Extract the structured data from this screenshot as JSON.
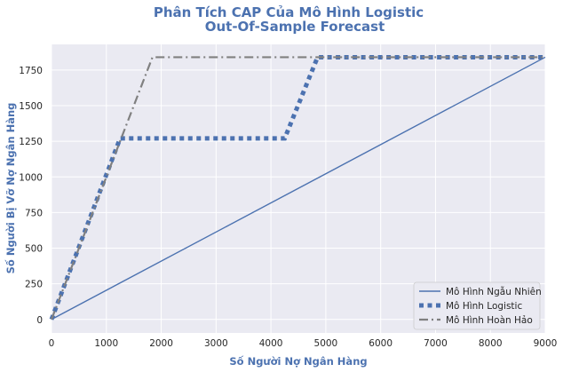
{
  "colors": {
    "title": "#4c72b0",
    "plot_bg": "#eaeaf2",
    "grid": "#ffffff",
    "random": "#4c72b0",
    "model": "#4c72b0",
    "perfect": "#808080"
  },
  "chart_data": {
    "type": "line",
    "title": "Phân Tích CAP Của Mô Hình Logistic",
    "subtitle": "Out-Of-Sample Forecast",
    "xlabel": "Số Người Nợ Ngân Hàng",
    "ylabel": "Số Người Bị Vỡ Nợ Ngân Hàng",
    "xlim": [
      0,
      9000
    ],
    "ylim": [
      -95,
      1930
    ],
    "xticks": [
      0,
      1000,
      2000,
      3000,
      4000,
      5000,
      6000,
      7000,
      8000,
      9000
    ],
    "yticks": [
      0,
      250,
      500,
      750,
      1000,
      1250,
      1500,
      1750
    ],
    "grid": true,
    "legend_position": "bottom-right",
    "series": [
      {
        "name": "Mô Hình Ngẫu Nhiên",
        "style": "solid",
        "points": [
          [
            0,
            0
          ],
          [
            9000,
            1840
          ]
        ]
      },
      {
        "name": "Mô Hình Logistic",
        "style": "dotted",
        "points": [
          [
            0,
            0
          ],
          [
            1250,
            1270
          ],
          [
            4250,
            1270
          ],
          [
            4850,
            1840
          ],
          [
            9000,
            1840
          ]
        ]
      },
      {
        "name": "Mô Hình Hoàn Hảo",
        "style": "dashdot",
        "points": [
          [
            0,
            0
          ],
          [
            1840,
            1840
          ],
          [
            9000,
            1840
          ]
        ]
      }
    ]
  }
}
